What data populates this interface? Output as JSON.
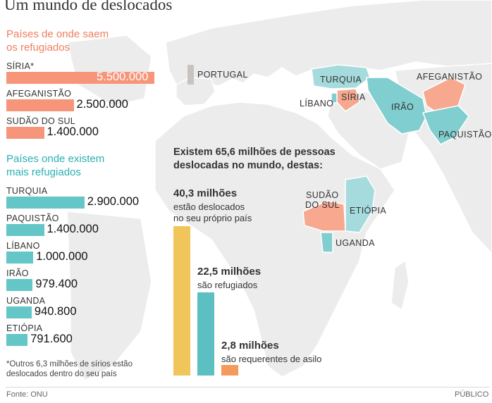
{
  "title": "Um mundo de deslocados",
  "origin_heading": [
    "Países de onde saem",
    "os refugiados"
  ],
  "host_heading": [
    "Países onde existem",
    "mais refugiados"
  ],
  "summary": [
    "Existem 65,6 milhões de pessoas",
    "deslocadas no mundo, destas:"
  ],
  "note": "*Outros 6,3 milhões de sírios estão deslocados dentro do seu país",
  "source": "Fonte: ONU",
  "brand": "PÚBLICO",
  "map_labels": {
    "portugal": "PORTUGAL",
    "turquia": "TURQUIA",
    "siria": "SÍRIA",
    "libano": "LÍBANO",
    "iraq": "IRÃO",
    "afeganistao": "AFEGANISTÃO",
    "paquistao": "PAQUISTÃO",
    "sudao_do_sul_1": "SUDÃO",
    "sudao_do_sul_2": "DO SUL",
    "etiopia": "ETIÓPIA",
    "uganda": "UGANDA"
  },
  "colors": {
    "origin": "#f6957a",
    "host": "#65c6c7",
    "displaced": "#f0c55a",
    "refugees": "#5cc0c2",
    "asylum": "#f59a5a",
    "map_land": "#ececec"
  },
  "chart_data": [
    {
      "type": "bar",
      "orientation": "horizontal",
      "title": "Países de onde saem os refugiados",
      "categories": [
        "SÍRIA*",
        "AFEGANISTÃO",
        "SUDÃO DO SUL"
      ],
      "values": [
        5500000,
        2500000,
        1400000
      ],
      "value_labels": [
        "5.500.000",
        "2.500.000",
        "1.400.000"
      ]
    },
    {
      "type": "bar",
      "orientation": "horizontal",
      "title": "Países onde existem mais refugiados",
      "categories": [
        "TURQUIA",
        "PAQUISTÃO",
        "LÍBANO",
        "IRÃO",
        "UGANDA",
        "ETIÓPIA"
      ],
      "values": [
        2900000,
        1400000,
        1000000,
        979400,
        940800,
        791600
      ],
      "value_labels": [
        "2.900.000",
        "1.400.000",
        "1.000.000",
        "979.400",
        "940.800",
        "791.600"
      ]
    },
    {
      "type": "bar",
      "orientation": "vertical",
      "title": "Existem 65,6 milhões de pessoas deslocadas no mundo, destas:",
      "categories": [
        "deslocados",
        "refugiados",
        "requerentes de asilo"
      ],
      "values": [
        40.3,
        22.5,
        2.8
      ],
      "value_labels": [
        "40,3 milhões",
        "22,5 milhões",
        "2,8 milhões"
      ],
      "descriptions": [
        [
          "estão deslocados",
          "no seu próprio país"
        ],
        [
          "são refugiados"
        ],
        [
          "são requerentes de asilo"
        ]
      ],
      "unit": "milhões"
    }
  ]
}
